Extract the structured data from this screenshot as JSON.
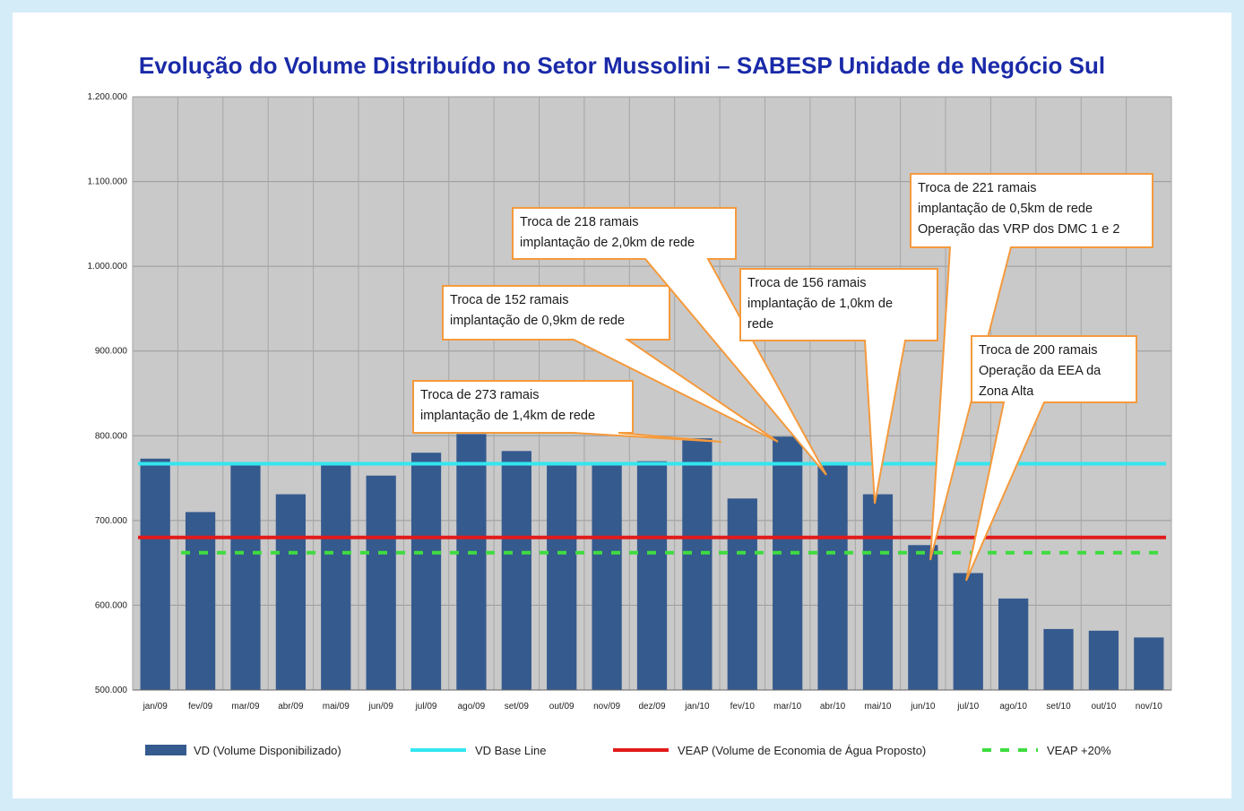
{
  "title": "Evolução do Volume Distribuído no Setor Mussolini – SABESP Unidade de Negócio Sul",
  "colors": {
    "background": "#d4ecf7",
    "plot_bg": "#c9c9c9",
    "bar": "#355a8e",
    "baseline": "#33e6f0",
    "veap": "#e21b1b",
    "veap20": "#3fdc3f",
    "callout_border": "#f59a3c",
    "title": "#1a2aa8"
  },
  "chart_data": {
    "type": "bar",
    "categories": [
      "jan/09",
      "fev/09",
      "mar/09",
      "abr/09",
      "mai/09",
      "jun/09",
      "jul/09",
      "ago/09",
      "set/09",
      "out/09",
      "nov/09",
      "dez/09",
      "jan/10",
      "fev/10",
      "mar/10",
      "abr/10",
      "mai/10",
      "jun/10",
      "jul/10",
      "ago/10",
      "set/10",
      "out/10",
      "nov/10"
    ],
    "series": [
      {
        "name": "VD (Volume Disponibilizado)",
        "type": "bar",
        "values": [
          773000,
          710000,
          767000,
          731000,
          766000,
          753000,
          780000,
          802000,
          782000,
          766000,
          766000,
          770000,
          797000,
          726000,
          799000,
          766000,
          731000,
          671000,
          638000,
          608000,
          572000,
          570000,
          562000
        ]
      },
      {
        "name": "VD Base Line",
        "type": "line",
        "value": 767000
      },
      {
        "name": "VEAP (Volume de Economia de Água Proposto)",
        "type": "line",
        "value": 680000
      },
      {
        "name": "VEAP +20%",
        "type": "dashed-line",
        "value": 662000
      }
    ],
    "ylim": [
      500000,
      1200000
    ],
    "yticks": [
      "500.000",
      "600.000",
      "700.000",
      "800.000",
      "900.000",
      "1.000.000",
      "1.100.000",
      "1.200.000"
    ],
    "ytick_values": [
      500000,
      600000,
      700000,
      800000,
      900000,
      1000000,
      1100000,
      1200000
    ],
    "grid": true,
    "legend_position": "bottom",
    "annotations": [
      {
        "lines": [
          "Troca de 273 ramais",
          "implantação de 1,4km de rede"
        ],
        "target_category": "jan/10"
      },
      {
        "lines": [
          "Troca de 152 ramais",
          "implantação de 0,9km de rede"
        ],
        "target_category": "mar/10"
      },
      {
        "lines": [
          "Troca de 218 ramais",
          "implantação de 2,0km de rede"
        ],
        "target_category": "abr/10"
      },
      {
        "lines": [
          "Troca de 156 ramais",
          "implantação de 1,0km de",
          "rede"
        ],
        "target_category": "mai/10"
      },
      {
        "lines": [
          "Troca de 221 ramais",
          "implantação de 0,5km de rede",
          "Operação das  VRP dos DMC 1 e 2"
        ],
        "target_category": "jun/10"
      },
      {
        "lines": [
          "Troca de 200 ramais",
          "Operação da EEA da",
          "Zona Alta"
        ],
        "target_category": "jul/10"
      }
    ]
  }
}
